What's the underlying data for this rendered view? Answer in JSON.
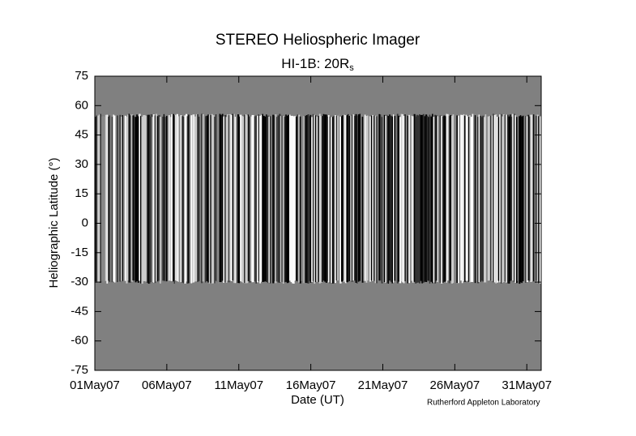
{
  "chart_data": {
    "type": "image-map",
    "title": "STEREO Heliospheric Imager",
    "subtitle": "HI-1B: 20R",
    "subtitle_subscript": "s",
    "xlabel": "Date (UT)",
    "ylabel": "Heliographic Latitude (°)",
    "credit": "Rutherford Appleton Laboratory",
    "xlim": [
      "2007-05-01",
      "2007-06-01"
    ],
    "xticks": [
      {
        "value": "2007-05-01",
        "label": "01May07"
      },
      {
        "value": "2007-05-06",
        "label": "06May07"
      },
      {
        "value": "2007-05-11",
        "label": "11May07"
      },
      {
        "value": "2007-05-16",
        "label": "16May07"
      },
      {
        "value": "2007-05-21",
        "label": "21May07"
      },
      {
        "value": "2007-05-26",
        "label": "26May07"
      },
      {
        "value": "2007-05-31",
        "label": "31May07"
      }
    ],
    "ylim": [
      -75,
      75
    ],
    "yticks": [
      75,
      60,
      45,
      30,
      15,
      0,
      -15,
      -30,
      -45,
      -60,
      -75
    ],
    "data_lat_range": [
      -30,
      55
    ],
    "background_color": "#808080"
  }
}
